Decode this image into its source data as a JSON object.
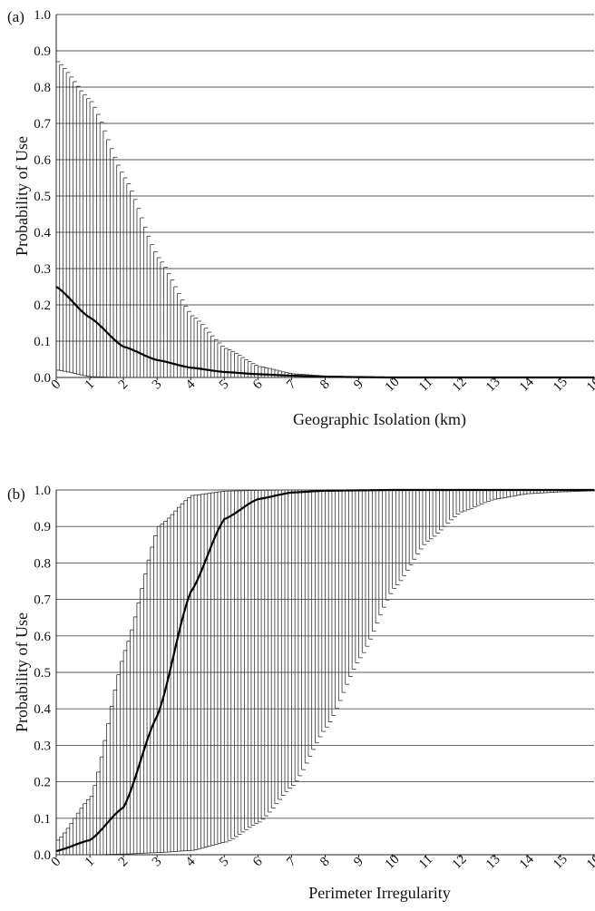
{
  "chart_data": [
    {
      "type": "line",
      "panel_label": "(a)",
      "xlabel": "Geographic Isolation (km)",
      "ylabel": "Probability of Use",
      "xlim": [
        0,
        16
      ],
      "ylim": [
        0,
        1
      ],
      "x_ticks": [
        "0",
        "1",
        "2",
        "3",
        "4",
        "5",
        "6",
        "7",
        "8",
        "9",
        "10",
        "11",
        "12",
        "13",
        "14",
        "15",
        "16"
      ],
      "y_ticks": [
        "0.0",
        "0.1",
        "0.2",
        "0.3",
        "0.4",
        "0.5",
        "0.6",
        "0.7",
        "0.8",
        "0.9",
        "1.0"
      ],
      "grid": true,
      "error_bars": true,
      "x": [
        0,
        1,
        2,
        3,
        4,
        5,
        6,
        7,
        8,
        9,
        10,
        11,
        12,
        13,
        14,
        15,
        16
      ],
      "series": [
        {
          "values": [
            0.25,
            0.165,
            0.085,
            0.048,
            0.027,
            0.015,
            0.009,
            0.005,
            0.002,
            0.001,
            0.0,
            0.0,
            0.0,
            0.0,
            0.0,
            0.0,
            0.0
          ],
          "lower": [
            0.02,
            0.002,
            0.0,
            0.0,
            0.0,
            0.0,
            0.0,
            0.0,
            0.0,
            0.0,
            0.0,
            0.0,
            0.0,
            0.0,
            0.0,
            0.0,
            0.0
          ],
          "upper": [
            0.87,
            0.76,
            0.55,
            0.33,
            0.17,
            0.08,
            0.03,
            0.01,
            0.004,
            0.002,
            0.001,
            0.0,
            0.0,
            0.0,
            0.0,
            0.0,
            0.0
          ]
        }
      ]
    },
    {
      "type": "line",
      "panel_label": "(b)",
      "xlabel": "Perimeter Irregularity",
      "ylabel": "Probability of Use",
      "xlim": [
        0,
        16
      ],
      "ylim": [
        0,
        1
      ],
      "x_ticks": [
        "0",
        "1",
        "2",
        "3",
        "4",
        "5",
        "6",
        "7",
        "8",
        "9",
        "10",
        "11",
        "12",
        "13",
        "14",
        "15",
        "16"
      ],
      "y_ticks": [
        "0.0",
        "0.1",
        "0.2",
        "0.3",
        "0.4",
        "0.5",
        "0.6",
        "0.7",
        "0.8",
        "0.9",
        "1.0"
      ],
      "grid": true,
      "error_bars": true,
      "x": [
        0,
        1,
        2,
        3,
        4,
        5,
        6,
        7,
        8,
        9,
        10,
        11,
        12,
        13,
        14,
        15,
        16
      ],
      "series": [
        {
          "values": [
            0.01,
            0.04,
            0.13,
            0.38,
            0.72,
            0.92,
            0.975,
            0.993,
            0.998,
            0.999,
            1.0,
            1.0,
            1.0,
            1.0,
            1.0,
            1.0,
            1.0
          ],
          "lower": [
            0.0,
            0.0,
            0.002,
            0.006,
            0.012,
            0.035,
            0.09,
            0.19,
            0.35,
            0.54,
            0.73,
            0.86,
            0.94,
            0.975,
            0.99,
            0.995,
            0.998
          ],
          "upper": [
            0.04,
            0.16,
            0.56,
            0.9,
            0.985,
            0.997,
            0.999,
            1.0,
            1.0,
            1.0,
            1.0,
            1.0,
            1.0,
            1.0,
            1.0,
            1.0,
            1.0
          ]
        }
      ]
    }
  ]
}
